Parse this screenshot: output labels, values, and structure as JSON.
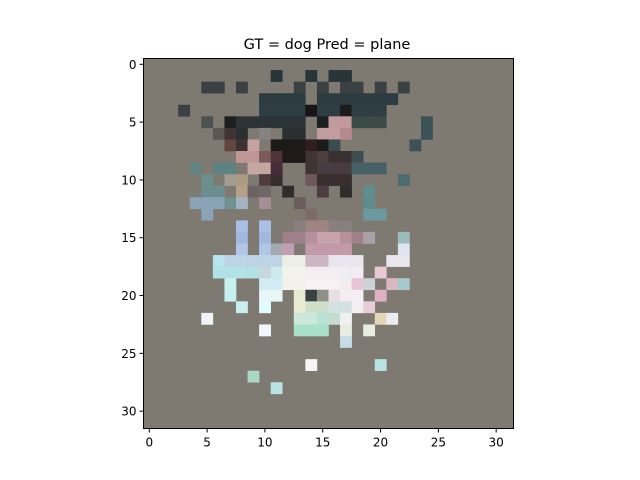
{
  "chart_data": {
    "type": "heatmap",
    "title": "GT = dog Pred = plane",
    "xlabel": "",
    "ylabel": "",
    "xlim": [
      -0.5,
      31.5
    ],
    "ylim": [
      31.5,
      -0.5
    ],
    "x_ticks": [
      0,
      5,
      10,
      15,
      20,
      25,
      30
    ],
    "y_ticks": [
      0,
      5,
      10,
      15,
      20,
      25,
      30
    ],
    "grid": false,
    "background_color": "#7f7a71",
    "image_size": [
      32,
      32
    ],
    "pixels": [
      [
        2,
        5,
        "#3b4143"
      ],
      [
        2,
        6,
        "#3b4143"
      ],
      [
        2,
        8,
        "#3b4143"
      ],
      [
        2,
        13,
        "#3b4143"
      ],
      [
        2,
        15,
        "#3b4143"
      ],
      [
        2,
        17,
        "#3b4143"
      ],
      [
        2,
        18,
        "#3b4143"
      ],
      [
        2,
        20,
        "#3b4143"
      ],
      [
        2,
        22,
        "#3b4143"
      ],
      [
        1,
        11,
        "#273539"
      ],
      [
        1,
        14,
        "#273539"
      ],
      [
        1,
        16,
        "#273539"
      ],
      [
        1,
        17,
        "#273539"
      ],
      [
        3,
        10,
        "#2d3c40"
      ],
      [
        3,
        11,
        "#2d3c40"
      ],
      [
        3,
        12,
        "#2d3c40"
      ],
      [
        3,
        13,
        "#2d3c40"
      ],
      [
        3,
        15,
        "#2d3c40"
      ],
      [
        3,
        16,
        "#2d3c40"
      ],
      [
        3,
        17,
        "#2d3c40"
      ],
      [
        3,
        18,
        "#2d3c40"
      ],
      [
        3,
        19,
        "#2d3c40"
      ],
      [
        3,
        20,
        "#2d3c40"
      ],
      [
        3,
        21,
        "#2d3c40"
      ],
      [
        4,
        3,
        "#3b4143"
      ],
      [
        4,
        10,
        "#2e3d41"
      ],
      [
        4,
        11,
        "#2e3d41"
      ],
      [
        4,
        12,
        "#2e3d41"
      ],
      [
        4,
        13,
        "#2e3d41"
      ],
      [
        4,
        14,
        "#161414"
      ],
      [
        4,
        15,
        "#2e3d41"
      ],
      [
        4,
        16,
        "#2e3d41"
      ],
      [
        4,
        17,
        "#1d1b1b"
      ],
      [
        4,
        18,
        "#2e3d41"
      ],
      [
        4,
        19,
        "#2e3d41"
      ],
      [
        4,
        20,
        "#2e3d41"
      ],
      [
        5,
        5,
        "#4d5250"
      ],
      [
        5,
        7,
        "#1d1e1e"
      ],
      [
        5,
        8,
        "#2c3438"
      ],
      [
        5,
        9,
        "#2c3438"
      ],
      [
        5,
        10,
        "#2c3438"
      ],
      [
        5,
        11,
        "#2c3438"
      ],
      [
        5,
        12,
        "#2c3438"
      ],
      [
        5,
        13,
        "#2c3438"
      ],
      [
        5,
        15,
        "#1c1f20"
      ],
      [
        5,
        16,
        "#c09a9c"
      ],
      [
        5,
        17,
        "#c09a9c"
      ],
      [
        5,
        18,
        "#3a4b46"
      ],
      [
        5,
        19,
        "#3a4b46"
      ],
      [
        5,
        20,
        "#3a4b46"
      ],
      [
        5,
        24,
        "#3c5257"
      ],
      [
        6,
        6,
        "#5c5650"
      ],
      [
        6,
        7,
        "#3f3333"
      ],
      [
        6,
        8,
        "#2c2f30"
      ],
      [
        6,
        10,
        "#878181"
      ],
      [
        6,
        12,
        "#2c2f30"
      ],
      [
        6,
        13,
        "#2c2f30"
      ],
      [
        6,
        15,
        "#c29da0"
      ],
      [
        6,
        16,
        "#c29da0"
      ],
      [
        6,
        17,
        "#b58a8e"
      ],
      [
        6,
        24,
        "#3c5257"
      ],
      [
        7,
        7,
        "#61463e"
      ],
      [
        7,
        8,
        "#3d3232"
      ],
      [
        7,
        9,
        "#c4a1a2"
      ],
      [
        7,
        11,
        "#1d1a1a"
      ],
      [
        7,
        12,
        "#1d1a1a"
      ],
      [
        7,
        13,
        "#1d1a1a"
      ],
      [
        7,
        14,
        "#301e20"
      ],
      [
        7,
        15,
        "#1d1a1a"
      ],
      [
        7,
        16,
        "#3b4c50"
      ],
      [
        7,
        23,
        "#3c5257"
      ],
      [
        8,
        8,
        "#c09695"
      ],
      [
        8,
        9,
        "#c09695"
      ],
      [
        8,
        10,
        "#7b5a5b"
      ],
      [
        8,
        11,
        "#4f3339"
      ],
      [
        8,
        12,
        "#1f1a1a"
      ],
      [
        8,
        13,
        "#1f1a1a"
      ],
      [
        8,
        14,
        "#3f3535"
      ],
      [
        8,
        15,
        "#4b3e3c"
      ],
      [
        8,
        16,
        "#393032"
      ],
      [
        8,
        17,
        "#393032"
      ],
      [
        8,
        18,
        "#3d4c4e"
      ],
      [
        9,
        4,
        "#628483"
      ],
      [
        9,
        6,
        "#5c8284"
      ],
      [
        9,
        7,
        "#5c8284"
      ],
      [
        9,
        9,
        "#c6a6a0"
      ],
      [
        9,
        10,
        "#c6a6a0"
      ],
      [
        9,
        11,
        "#452c38"
      ],
      [
        9,
        14,
        "#3d3434"
      ],
      [
        9,
        15,
        "#473c3f"
      ],
      [
        9,
        16,
        "#473c3f"
      ],
      [
        9,
        17,
        "#473c3f"
      ],
      [
        9,
        18,
        "#476068"
      ],
      [
        9,
        19,
        "#476068"
      ],
      [
        9,
        20,
        "#476068"
      ],
      [
        10,
        5,
        "#6a8f8c"
      ],
      [
        10,
        7,
        "#a39a90"
      ],
      [
        10,
        8,
        "#aa9a82"
      ],
      [
        10,
        10,
        "#513c3c"
      ],
      [
        10,
        11,
        "#372d2e"
      ],
      [
        10,
        14,
        "#6f585b"
      ],
      [
        10,
        15,
        "#3a2f30"
      ],
      [
        10,
        16,
        "#3a2f30"
      ],
      [
        10,
        17,
        "#3a2f30"
      ],
      [
        10,
        22,
        "#4d6c72"
      ],
      [
        11,
        5,
        "#6c8e8f"
      ],
      [
        11,
        6,
        "#6c8e8f"
      ],
      [
        11,
        8,
        "#b6a088"
      ],
      [
        11,
        9,
        "#6c6464"
      ],
      [
        11,
        10,
        "#6f6868"
      ],
      [
        11,
        12,
        "#2f2c2c"
      ],
      [
        11,
        15,
        "#4a3e40"
      ],
      [
        11,
        17,
        "#2f2c2c"
      ],
      [
        11,
        19,
        "#5e8e8e"
      ],
      [
        12,
        4,
        "#8aa3b6"
      ],
      [
        12,
        5,
        "#8aa3b6"
      ],
      [
        12,
        6,
        "#8aa3b6"
      ],
      [
        12,
        7,
        "#6f918f"
      ],
      [
        12,
        8,
        "#a2b4c2"
      ],
      [
        12,
        10,
        "#a48f94"
      ],
      [
        12,
        13,
        "#6b5d5e"
      ],
      [
        12,
        19,
        "#5f8b8f"
      ],
      [
        13,
        5,
        "#8aa3b6"
      ],
      [
        13,
        14,
        "#7e6b68"
      ],
      [
        13,
        19,
        "#6a9a9c"
      ],
      [
        13,
        20,
        "#6a9a9c"
      ],
      [
        14,
        8,
        "#a9bfe6"
      ],
      [
        14,
        10,
        "#a9bfe6"
      ],
      [
        14,
        13,
        "#8a7f80"
      ],
      [
        14,
        14,
        "#9e8582"
      ],
      [
        14,
        15,
        "#9e8582"
      ],
      [
        14,
        16,
        "#8a7f80"
      ],
      [
        14,
        17,
        "#8a7f80"
      ],
      [
        15,
        8,
        "#a3b8e0"
      ],
      [
        15,
        10,
        "#a3b8e0"
      ],
      [
        15,
        12,
        "#9e7f8c"
      ],
      [
        15,
        13,
        "#9e7f8c"
      ],
      [
        15,
        14,
        "#b6909c"
      ],
      [
        15,
        15,
        "#c6a3ad"
      ],
      [
        15,
        16,
        "#c6a3ad"
      ],
      [
        15,
        17,
        "#b6909c"
      ],
      [
        15,
        18,
        "#9e8088"
      ],
      [
        15,
        19,
        "#a8a2a8"
      ],
      [
        15,
        22,
        "#9cbcbc"
      ],
      [
        16,
        8,
        "#b2c7e7"
      ],
      [
        16,
        10,
        "#b2c7e7"
      ],
      [
        16,
        11,
        "#a4a8b0"
      ],
      [
        16,
        12,
        "#c0a0b0"
      ],
      [
        16,
        14,
        "#c49aa8"
      ],
      [
        16,
        15,
        "#c49aa8"
      ],
      [
        16,
        16,
        "#c49aa8"
      ],
      [
        16,
        17,
        "#c49aa8"
      ],
      [
        16,
        22,
        "#dfe3f1"
      ],
      [
        17,
        6,
        "#b9e5f1"
      ],
      [
        17,
        7,
        "#bcd4e5"
      ],
      [
        17,
        8,
        "#bcd4e5"
      ],
      [
        17,
        9,
        "#bcd4e5"
      ],
      [
        17,
        10,
        "#bcd4e5"
      ],
      [
        17,
        11,
        "#bcd4e5"
      ],
      [
        17,
        12,
        "#eef0e7"
      ],
      [
        17,
        13,
        "#eef0e7"
      ],
      [
        17,
        14,
        "#cbb6c3"
      ],
      [
        17,
        15,
        "#cbb6c3"
      ],
      [
        17,
        16,
        "#e9e6ef"
      ],
      [
        17,
        17,
        "#e9e6ef"
      ],
      [
        17,
        18,
        "#e9e6ef"
      ],
      [
        17,
        21,
        "#e9e6ef"
      ],
      [
        17,
        22,
        "#e9e6ef"
      ],
      [
        18,
        6,
        "#b1e2e6"
      ],
      [
        18,
        7,
        "#b1e2e6"
      ],
      [
        18,
        8,
        "#b1e2e6"
      ],
      [
        18,
        9,
        "#b1e2e6"
      ],
      [
        18,
        10,
        "#c8d7dc"
      ],
      [
        18,
        11,
        "#cdebef"
      ],
      [
        18,
        12,
        "#f1f3ec"
      ],
      [
        18,
        13,
        "#f1f3ec"
      ],
      [
        18,
        14,
        "#f4eef2"
      ],
      [
        18,
        15,
        "#f4eef2"
      ],
      [
        18,
        16,
        "#f4eef2"
      ],
      [
        18,
        17,
        "#eceef4"
      ],
      [
        18,
        18,
        "#f2edf4"
      ],
      [
        18,
        20,
        "#e8c8d2"
      ],
      [
        19,
        7,
        "#c8f0f0"
      ],
      [
        19,
        10,
        "#d3ebf4"
      ],
      [
        19,
        11,
        "#d3ebf4"
      ],
      [
        19,
        12,
        "#f3f2ea"
      ],
      [
        19,
        13,
        "#f3f2ea"
      ],
      [
        19,
        14,
        "#f7f1f3"
      ],
      [
        19,
        15,
        "#f7f1f3"
      ],
      [
        19,
        16,
        "#f7f1f3"
      ],
      [
        19,
        17,
        "#f4edf0"
      ],
      [
        19,
        18,
        "#e8c4d4"
      ],
      [
        19,
        19,
        "#cfd2d4"
      ],
      [
        19,
        21,
        "#d9b9c1"
      ],
      [
        19,
        22,
        "#a8c8cf"
      ],
      [
        20,
        7,
        "#c6f0f0"
      ],
      [
        20,
        10,
        "#e8f6f8"
      ],
      [
        20,
        11,
        "#e8f6f8"
      ],
      [
        20,
        13,
        "#e7ecd1"
      ],
      [
        20,
        14,
        "#3b4143"
      ],
      [
        20,
        15,
        "#8f9087"
      ],
      [
        20,
        16,
        "#e8dfe5"
      ],
      [
        20,
        17,
        "#f4eef2"
      ],
      [
        20,
        18,
        "#f4eef2"
      ],
      [
        20,
        20,
        "#dfb0c0"
      ],
      [
        21,
        8,
        "#c8eeef"
      ],
      [
        21,
        10,
        "#dffcff"
      ],
      [
        21,
        13,
        "#e8ecd1"
      ],
      [
        21,
        14,
        "#cddfc8"
      ],
      [
        21,
        15,
        "#cddfc8"
      ],
      [
        21,
        16,
        "#d3e1e3"
      ],
      [
        21,
        17,
        "#d3e1e3"
      ],
      [
        21,
        18,
        "#f4eef2"
      ],
      [
        21,
        19,
        "#e9cdd6"
      ],
      [
        22,
        5,
        "#eef4f8"
      ],
      [
        22,
        13,
        "#cde8da"
      ],
      [
        22,
        14,
        "#cde8da"
      ],
      [
        22,
        15,
        "#b9e2d6"
      ],
      [
        22,
        16,
        "#c6dcd0"
      ],
      [
        22,
        17,
        "#f1f1f1"
      ],
      [
        22,
        20,
        "#e3d6b9"
      ],
      [
        22,
        21,
        "#ecedf1"
      ],
      [
        23,
        10,
        "#f2f6ff"
      ],
      [
        23,
        13,
        "#a8e0cc"
      ],
      [
        23,
        14,
        "#a8e0cc"
      ],
      [
        23,
        15,
        "#a8e0cc"
      ],
      [
        23,
        17,
        "#e7ede0"
      ],
      [
        23,
        19,
        "#e7ede0"
      ],
      [
        24,
        17,
        "#c5dde6"
      ],
      [
        26,
        14,
        "#f4f4f4"
      ],
      [
        26,
        20,
        "#b8e2e6"
      ],
      [
        27,
        9,
        "#aad7c0"
      ],
      [
        28,
        11,
        "#b9e2e6"
      ]
    ]
  }
}
